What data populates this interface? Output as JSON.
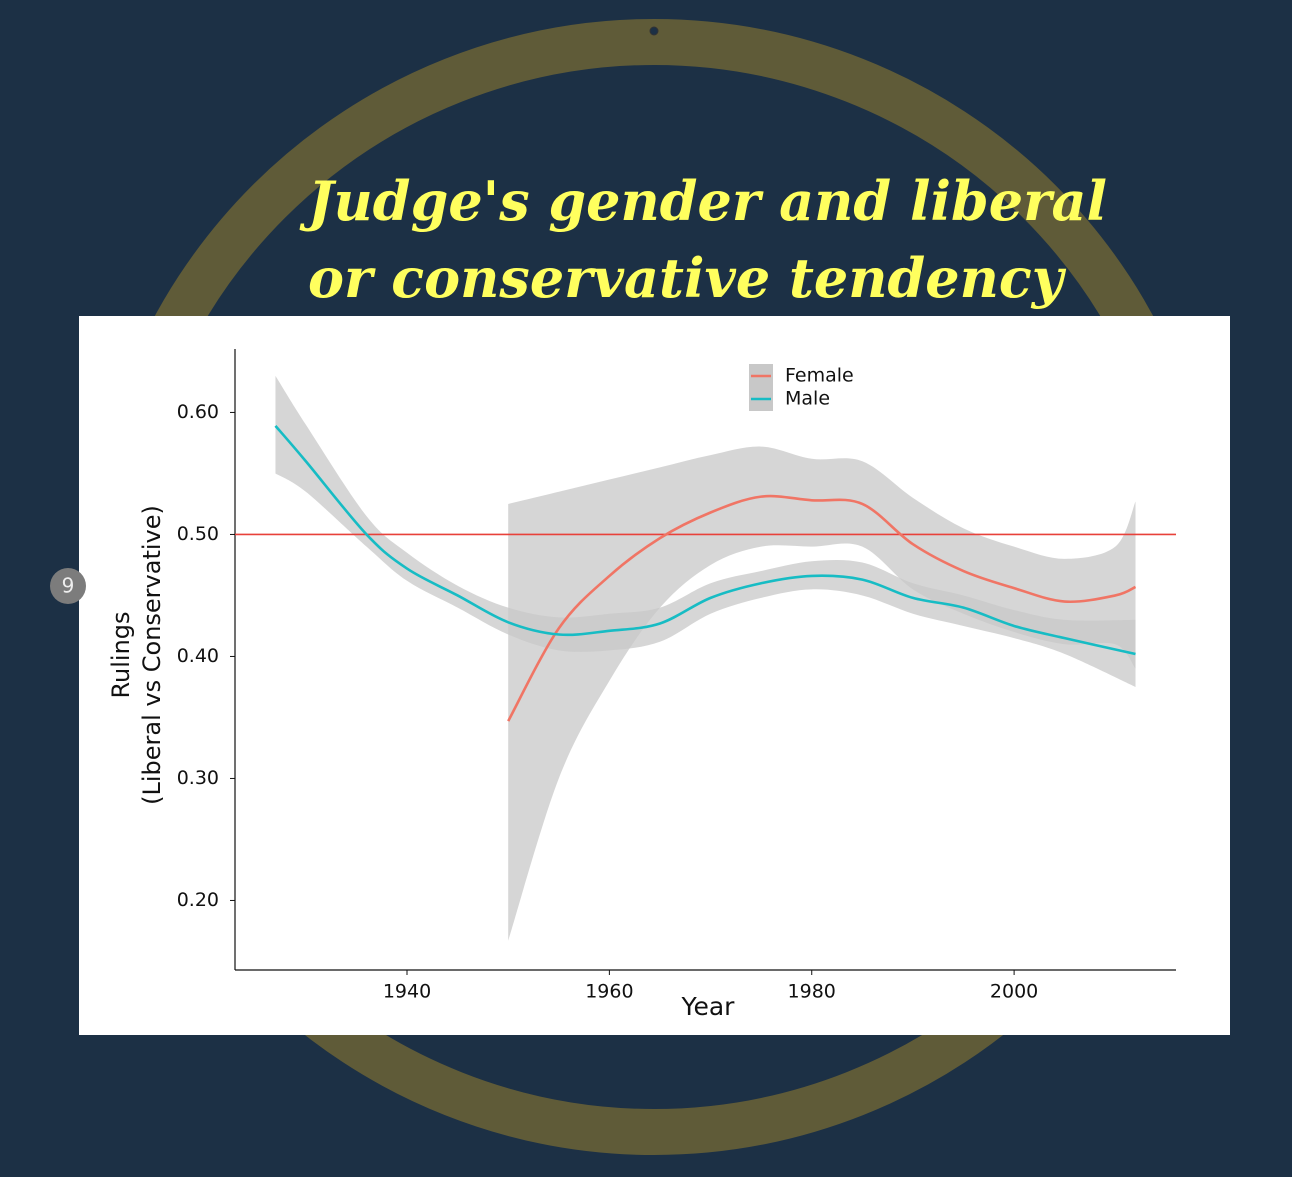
{
  "slide_number": "9",
  "chart_data": {
    "type": "line",
    "title": [
      "Judge's gender and liberal",
      "or conservative tendency"
    ],
    "xlabel": "Year",
    "ylabel": [
      "Rulings",
      "(Liberal vs Conservative)"
    ],
    "xlim": [
      1923,
      2016
    ],
    "ylim": [
      0.143,
      0.652
    ],
    "xticks": [
      1940,
      1960,
      1980,
      2000
    ],
    "yticks": [
      {
        "value": 0.6,
        "label": "0.60"
      },
      {
        "value": 0.5,
        "label": "0.50"
      },
      {
        "value": 0.4,
        "label": "0.40"
      },
      {
        "value": 0.3,
        "label": "0.30"
      },
      {
        "value": 0.2,
        "label": "0.20"
      }
    ],
    "reference_line": 0.5,
    "reference_color": "#e8413a",
    "band_color": "#c8c8c8",
    "series": [
      {
        "name": "Female",
        "color": "#f07565",
        "x": [
          1950,
          1955,
          1960,
          1965,
          1970,
          1975,
          1980,
          1985,
          1990,
          1995,
          2000,
          2005,
          2010,
          2012
        ],
        "values": [
          0.347,
          0.423,
          0.466,
          0.497,
          0.518,
          0.531,
          0.528,
          0.525,
          0.492,
          0.47,
          0.456,
          0.445,
          0.45,
          0.457
        ],
        "upper": [
          0.525,
          0.535,
          0.545,
          0.555,
          0.565,
          0.572,
          0.562,
          0.56,
          0.53,
          0.505,
          0.49,
          0.48,
          0.49,
          0.527
        ],
        "lower": [
          0.167,
          0.3,
          0.38,
          0.44,
          0.475,
          0.49,
          0.49,
          0.49,
          0.455,
          0.435,
          0.42,
          0.41,
          0.41,
          0.39
        ]
      },
      {
        "name": "Male",
        "color": "#17bcc4",
        "x": [
          1927,
          1930,
          1936,
          1940,
          1945,
          1950,
          1955,
          1960,
          1965,
          1970,
          1975,
          1980,
          1985,
          1990,
          1995,
          2000,
          2005,
          2012
        ],
        "values": [
          0.589,
          0.56,
          0.5,
          0.472,
          0.45,
          0.428,
          0.418,
          0.421,
          0.427,
          0.448,
          0.46,
          0.466,
          0.463,
          0.448,
          0.44,
          0.425,
          0.415,
          0.402
        ],
        "upper": [
          0.63,
          0.59,
          0.515,
          0.485,
          0.458,
          0.44,
          0.432,
          0.435,
          0.44,
          0.46,
          0.47,
          0.478,
          0.477,
          0.46,
          0.45,
          0.438,
          0.43,
          0.43
        ],
        "lower": [
          0.55,
          0.535,
          0.49,
          0.462,
          0.44,
          0.418,
          0.405,
          0.405,
          0.412,
          0.435,
          0.448,
          0.455,
          0.45,
          0.435,
          0.425,
          0.415,
          0.402,
          0.375
        ]
      }
    ]
  }
}
